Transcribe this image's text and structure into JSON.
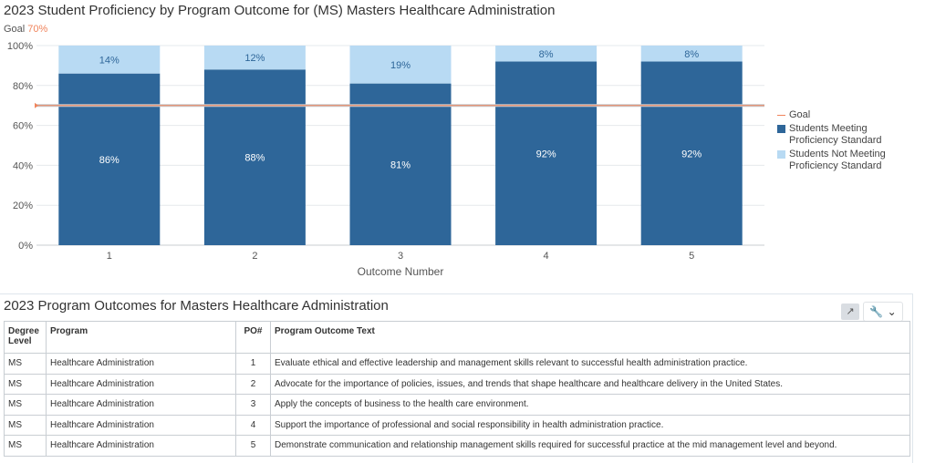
{
  "chart_title": "2023 Student Proficiency by Program Outcome for (MS) Masters Healthcare Administration",
  "goal_caption": {
    "label": "Goal",
    "value": "70%"
  },
  "chart_data": {
    "type": "bar",
    "stacked": true,
    "categories": [
      "1",
      "2",
      "3",
      "4",
      "5"
    ],
    "series": [
      {
        "name": "Students Meeting Proficiency Standard",
        "values": [
          86,
          88,
          81,
          92,
          92
        ],
        "labels": [
          "86%",
          "88%",
          "81%",
          "92%",
          "92%"
        ],
        "color": "#2e6699"
      },
      {
        "name": "Students Not Meeting Proficiency Standard",
        "values": [
          14,
          12,
          19,
          8,
          8
        ],
        "labels": [
          "14%",
          "12%",
          "19%",
          "8%",
          "8%"
        ],
        "color": "#b8daf3"
      }
    ],
    "goal": {
      "name": "Goal",
      "value": 70,
      "color": "#f0845c"
    },
    "ylim": [
      0,
      100
    ],
    "yticks": [
      "0%",
      "20%",
      "40%",
      "60%",
      "80%",
      "100%"
    ],
    "ytick_values": [
      0,
      20,
      40,
      60,
      80,
      100
    ],
    "xlabel": "Outcome Number",
    "ylabel": "",
    "grid": true,
    "legend_position": "right"
  },
  "legend": {
    "goal": "Goal",
    "meeting": "Students Meeting Proficiency Standard",
    "not_meeting": "Students Not Meeting Proficiency Standard"
  },
  "table_panel": {
    "title": "2023 Program Outcomes for Masters Healthcare Administration",
    "tools": {
      "expand_icon": "expand-icon",
      "settings_icon": "wrench-icon",
      "dropdown_icon": "chevron-down-icon"
    },
    "headers": [
      "Degree Level",
      "Program",
      "PO#",
      "Program Outcome Text"
    ],
    "rows": [
      [
        "MS",
        "Healthcare Administration",
        "1",
        "Evaluate ethical and effective leadership and management skills relevant to successful health administration practice."
      ],
      [
        "MS",
        "Healthcare Administration",
        "2",
        "Advocate for the importance of policies, issues, and trends that shape healthcare and healthcare delivery in the United States."
      ],
      [
        "MS",
        "Healthcare Administration",
        "3",
        "Apply the concepts of business to the health care environment."
      ],
      [
        "MS",
        "Healthcare Administration",
        "4",
        "Support the importance of professional and social responsibility in health administration practice."
      ],
      [
        "MS",
        "Healthcare Administration",
        "5",
        "Demonstrate communication and relationship management skills required for successful practice at the mid management level and beyond."
      ]
    ]
  }
}
